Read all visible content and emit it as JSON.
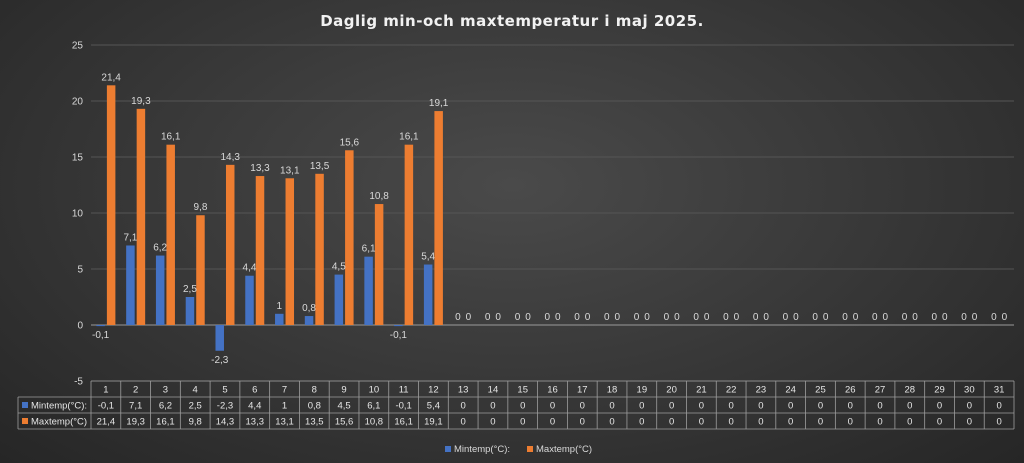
{
  "chart_data": {
    "type": "bar",
    "title": "Daglig min-och maxtemperatur i maj 2025.",
    "categories": [
      "1",
      "2",
      "3",
      "4",
      "5",
      "6",
      "7",
      "8",
      "9",
      "10",
      "11",
      "12",
      "13",
      "14",
      "15",
      "16",
      "17",
      "18",
      "19",
      "20",
      "21",
      "22",
      "23",
      "24",
      "25",
      "26",
      "27",
      "28",
      "29",
      "30",
      "31"
    ],
    "series": [
      {
        "name": "Mintemp(°C):",
        "color": "#4472c4",
        "values": [
          -0.1,
          7.1,
          6.2,
          2.5,
          -2.3,
          4.4,
          1,
          0.8,
          4.5,
          6.1,
          -0.1,
          5.4,
          0,
          0,
          0,
          0,
          0,
          0,
          0,
          0,
          0,
          0,
          0,
          0,
          0,
          0,
          0,
          0,
          0,
          0,
          0
        ],
        "labels": [
          "-0,1",
          "7,1",
          "6,2",
          "2,5",
          "-2,3",
          "4,4",
          "1",
          "0,8",
          "4,5",
          "6,1",
          "-0,1",
          "5,4",
          "0",
          "0",
          "0",
          "0",
          "0",
          "0",
          "0",
          "0",
          "0",
          "0",
          "0",
          "0",
          "0",
          "0",
          "0",
          "0",
          "0",
          "0",
          "0"
        ]
      },
      {
        "name": "Maxtemp(°C)",
        "color": "#ed7d31",
        "values": [
          21.4,
          19.3,
          16.1,
          9.8,
          14.3,
          13.3,
          13.1,
          13.5,
          15.6,
          10.8,
          16.1,
          19.1,
          0,
          0,
          0,
          0,
          0,
          0,
          0,
          0,
          0,
          0,
          0,
          0,
          0,
          0,
          0,
          0,
          0,
          0,
          0
        ],
        "labels": [
          "21,4",
          "19,3",
          "16,1",
          "9,8",
          "14,3",
          "13,3",
          "13,1",
          "13,5",
          "15,6",
          "10,8",
          "16,1",
          "19,1",
          "0",
          "0",
          "0",
          "0",
          "0",
          "0",
          "0",
          "0",
          "0",
          "0",
          "0",
          "0",
          "0",
          "0",
          "0",
          "0",
          "0",
          "0",
          "0"
        ]
      }
    ],
    "ylim": [
      -5,
      25
    ],
    "yticks": [
      -5,
      0,
      5,
      10,
      15,
      20,
      25
    ],
    "grid": true,
    "legend_position": "bottom",
    "data_table": true
  }
}
